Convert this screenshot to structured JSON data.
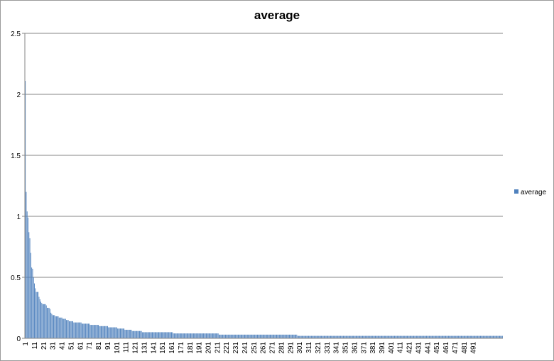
{
  "chart_data": {
    "type": "bar",
    "title": "average",
    "xlabel": "",
    "ylabel": "",
    "ylim": [
      0,
      2.5
    ],
    "yticks": [
      "0",
      "0.5",
      "1",
      "1.5",
      "2",
      "2.5"
    ],
    "xtick_labels": [
      "1",
      "11",
      "21",
      "31",
      "41",
      "51",
      "61",
      "71",
      "81",
      "91",
      "101",
      "111",
      "121",
      "131",
      "141",
      "151",
      "161",
      "171",
      "181",
      "191",
      "201",
      "211",
      "221",
      "231",
      "241",
      "251",
      "261",
      "271",
      "281",
      "291",
      "301",
      "311",
      "321",
      "331",
      "341",
      "351",
      "361",
      "371",
      "381",
      "391",
      "401",
      "411",
      "421",
      "431",
      "441",
      "451",
      "461",
      "471",
      "481",
      "491"
    ],
    "grid": true,
    "legend_position": "right",
    "color": "#4f81bd",
    "series": [
      {
        "name": "average",
        "x_start": 1,
        "values": [
          2.11,
          1.2,
          1.04,
          0.99,
          0.87,
          0.82,
          0.7,
          0.58,
          0.57,
          0.5,
          0.45,
          0.41,
          0.38,
          0.38,
          0.38,
          0.34,
          0.32,
          0.3,
          0.29,
          0.28,
          0.28,
          0.28,
          0.28,
          0.27,
          0.25,
          0.25,
          0.25,
          0.24,
          0.21,
          0.2,
          0.19,
          0.19,
          0.19,
          0.18,
          0.18,
          0.18,
          0.18,
          0.17,
          0.17,
          0.17,
          0.17,
          0.16,
          0.16,
          0.16,
          0.16,
          0.15,
          0.15,
          0.15,
          0.14,
          0.14,
          0.14,
          0.14,
          0.14,
          0.13,
          0.13,
          0.13,
          0.13,
          0.13,
          0.13,
          0.13,
          0.13,
          0.13,
          0.12,
          0.12,
          0.12,
          0.12,
          0.12,
          0.12,
          0.12,
          0.12,
          0.12,
          0.11,
          0.11,
          0.11,
          0.11,
          0.11,
          0.11,
          0.11,
          0.11,
          0.11,
          0.11,
          0.1,
          0.1,
          0.1,
          0.1,
          0.1,
          0.1,
          0.1,
          0.1,
          0.1,
          0.1,
          0.09,
          0.09,
          0.09,
          0.09,
          0.09,
          0.09,
          0.09,
          0.09,
          0.09,
          0.09,
          0.08,
          0.08,
          0.08,
          0.08,
          0.08,
          0.08,
          0.08,
          0.08,
          0.07,
          0.07,
          0.07,
          0.07,
          0.07,
          0.07,
          0.07,
          0.07,
          0.06,
          0.06,
          0.06,
          0.06,
          0.06,
          0.06,
          0.06,
          0.06,
          0.06,
          0.06,
          0.06,
          0.05,
          0.05,
          0.05,
          0.05,
          0.05,
          0.05,
          0.05,
          0.05,
          0.05,
          0.05,
          0.05,
          0.05,
          0.05,
          0.05,
          0.05,
          0.05,
          0.05,
          0.05,
          0.05,
          0.05,
          0.05,
          0.05,
          0.05,
          0.05,
          0.05,
          0.05,
          0.05,
          0.05,
          0.05,
          0.05,
          0.05,
          0.05,
          0.05,
          0.05,
          0.04,
          0.04,
          0.04,
          0.04,
          0.04,
          0.04,
          0.04,
          0.04,
          0.04,
          0.04,
          0.04,
          0.04,
          0.04,
          0.04,
          0.04,
          0.04,
          0.04,
          0.04,
          0.04,
          0.04,
          0.04,
          0.04,
          0.04,
          0.04,
          0.04,
          0.04,
          0.04,
          0.04,
          0.04,
          0.04,
          0.04,
          0.04,
          0.04,
          0.04,
          0.04,
          0.04,
          0.04,
          0.04,
          0.04,
          0.04,
          0.04,
          0.04,
          0.04,
          0.04,
          0.04,
          0.04,
          0.04,
          0.04,
          0.04,
          0.04,
          0.03,
          0.03,
          0.03,
          0.03,
          0.03,
          0.03,
          0.03,
          0.03,
          0.03,
          0.03,
          0.03,
          0.03,
          0.03,
          0.03,
          0.03,
          0.03,
          0.03,
          0.03,
          0.03,
          0.03,
          0.03,
          0.03,
          0.03,
          0.03,
          0.03,
          0.03,
          0.03,
          0.03,
          0.03,
          0.03,
          0.03,
          0.03,
          0.03,
          0.03,
          0.03,
          0.03,
          0.03,
          0.03,
          0.03,
          0.03,
          0.03,
          0.03,
          0.03,
          0.03,
          0.03,
          0.03,
          0.03,
          0.03,
          0.03,
          0.03,
          0.03,
          0.03,
          0.03,
          0.03,
          0.03,
          0.03,
          0.03,
          0.03,
          0.03,
          0.03,
          0.03,
          0.03,
          0.03,
          0.03,
          0.03,
          0.03,
          0.03,
          0.03,
          0.03,
          0.03,
          0.03,
          0.03,
          0.03,
          0.03,
          0.03,
          0.03,
          0.03,
          0.03,
          0.03,
          0.03,
          0.03,
          0.03,
          0.03,
          0.03,
          0.03,
          0.03,
          0.02,
          0.02,
          0.02,
          0.02,
          0.02,
          0.02,
          0.02,
          0.02,
          0.02,
          0.02,
          0.02,
          0.02,
          0.02,
          0.02,
          0.02,
          0.02,
          0.02,
          0.02,
          0.02,
          0.02,
          0.02,
          0.02,
          0.02,
          0.02,
          0.02,
          0.02,
          0.02,
          0.02,
          0.02,
          0.02,
          0.02,
          0.02,
          0.02,
          0.02,
          0.02,
          0.02,
          0.02,
          0.02,
          0.02,
          0.02,
          0.02,
          0.02,
          0.02,
          0.02,
          0.02,
          0.02,
          0.02,
          0.02,
          0.02,
          0.02,
          0.02,
          0.02,
          0.02,
          0.02,
          0.02,
          0.02,
          0.02,
          0.02,
          0.02,
          0.02,
          0.02,
          0.02,
          0.02,
          0.02,
          0.02,
          0.02,
          0.02,
          0.02,
          0.02,
          0.02,
          0.02,
          0.02,
          0.02,
          0.02,
          0.02,
          0.02,
          0.02,
          0.02,
          0.02,
          0.02,
          0.02,
          0.02,
          0.02,
          0.02,
          0.02,
          0.02,
          0.02,
          0.02,
          0.02,
          0.02,
          0.02,
          0.02,
          0.02,
          0.02,
          0.02,
          0.02,
          0.02,
          0.02,
          0.02,
          0.02,
          0.02,
          0.02,
          0.02,
          0.02,
          0.02,
          0.02,
          0.02,
          0.02,
          0.02,
          0.02,
          0.02,
          0.02,
          0.02,
          0.02,
          0.02,
          0.02,
          0.02,
          0.02,
          0.02,
          0.02,
          0.02,
          0.02,
          0.02,
          0.02,
          0.02,
          0.02,
          0.02,
          0.02,
          0.02,
          0.02,
          0.02,
          0.02,
          0.02,
          0.02,
          0.02,
          0.02,
          0.02,
          0.02,
          0.02,
          0.02,
          0.02,
          0.02,
          0.02,
          0.02,
          0.02,
          0.02,
          0.02,
          0.02,
          0.02,
          0.02,
          0.02,
          0.02,
          0.02,
          0.02,
          0.02,
          0.02,
          0.02,
          0.02,
          0.02,
          0.02,
          0.02,
          0.02,
          0.02,
          0.02,
          0.02,
          0.02,
          0.02,
          0.02,
          0.02,
          0.02,
          0.02,
          0.02,
          0.02,
          0.02,
          0.02,
          0.02,
          0.02,
          0.02,
          0.02,
          0.02,
          0.02,
          0.02,
          0.02,
          0.02,
          0.02,
          0.02,
          0.02,
          0.02,
          0.02,
          0.02,
          0.02,
          0.02,
          0.02,
          0.02,
          0.02,
          0.02,
          0.02,
          0.02,
          0.02,
          0.02,
          0.02,
          0.02,
          0.02,
          0.02,
          0.02,
          0.02,
          0.02,
          0.02,
          0.02,
          0.02,
          0.02,
          0.02,
          0.02,
          0.02,
          0.02,
          0.02,
          0.02,
          0.02,
          0.02,
          0.02,
          0.02,
          0.02,
          0.02,
          0.02,
          0.02
        ]
      }
    ]
  }
}
